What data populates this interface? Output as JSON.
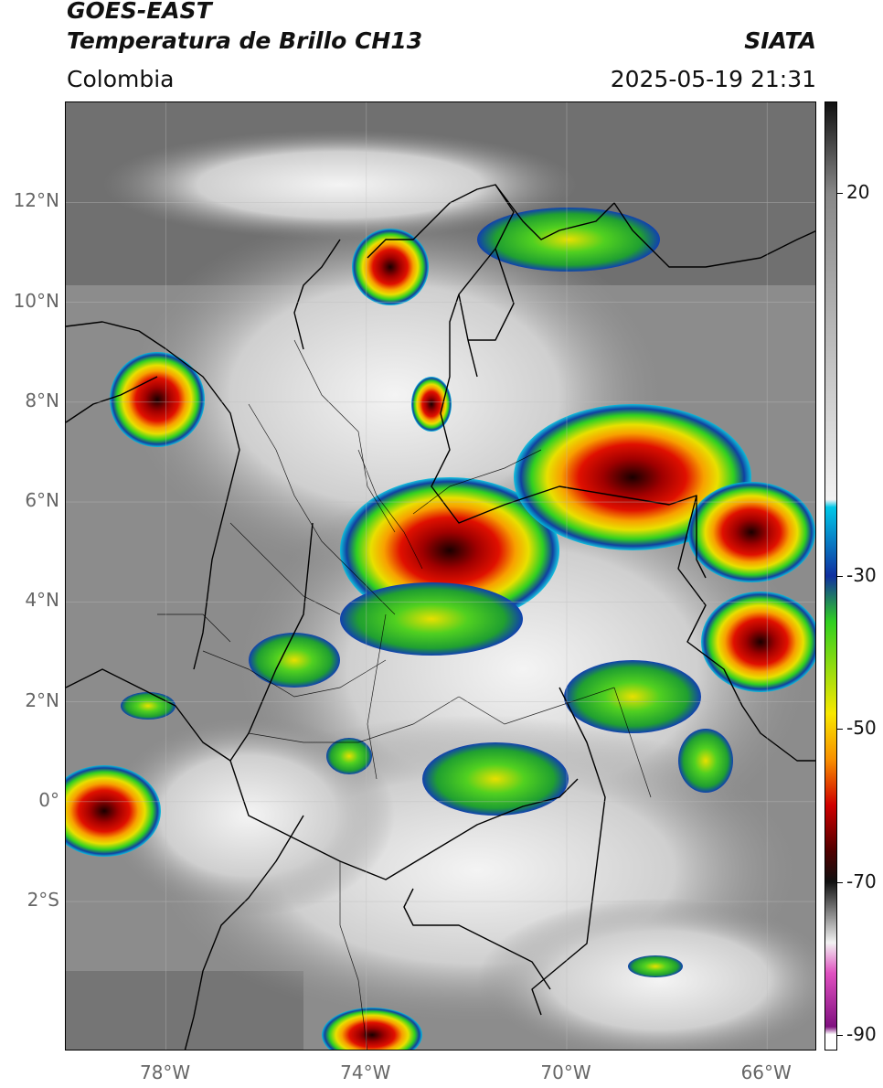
{
  "header": {
    "satellite": "GOES-EAST",
    "product": "Temperatura de Brillo CH13",
    "region": "Colombia",
    "agency": "SIATA",
    "datetime": "2025-05-19 21:31"
  },
  "map": {
    "lon_range": [
      -80,
      -65
    ],
    "lat_range": [
      -5,
      14
    ],
    "lat_ticks": [
      {
        "value": 12,
        "label": "12°N"
      },
      {
        "value": 10,
        "label": "10°N"
      },
      {
        "value": 8,
        "label": "8°N"
      },
      {
        "value": 6,
        "label": "6°N"
      },
      {
        "value": 4,
        "label": "4°N"
      },
      {
        "value": 2,
        "label": "2°N"
      },
      {
        "value": 0,
        "label": "0°"
      },
      {
        "value": -2,
        "label": "2°S"
      }
    ],
    "lon_ticks": [
      {
        "value": -78,
        "label": "78°W"
      },
      {
        "value": -74,
        "label": "74°W"
      },
      {
        "value": -70,
        "label": "70°W"
      },
      {
        "value": -66,
        "label": "66°W"
      }
    ],
    "gridlines": true
  },
  "colorbar": {
    "range": [
      -92,
      32
    ],
    "ticks": [
      {
        "value": 20,
        "label": "20"
      },
      {
        "value": -30,
        "label": "-30"
      },
      {
        "value": -50,
        "label": "-50"
      },
      {
        "value": -70,
        "label": "-70"
      },
      {
        "value": -90,
        "label": "-90"
      }
    ],
    "colors": {
      "warm": "#111111",
      "mid_gray": "#888888",
      "light": "#f2f2f2",
      "cyan": "#00c8e8",
      "blue": "#1030a0",
      "green": "#30d020",
      "yellow": "#f8e800",
      "orange": "#f89000",
      "red": "#d00000",
      "dark_red": "#500000",
      "magenta": "#e050c0",
      "purple": "#801080"
    }
  }
}
